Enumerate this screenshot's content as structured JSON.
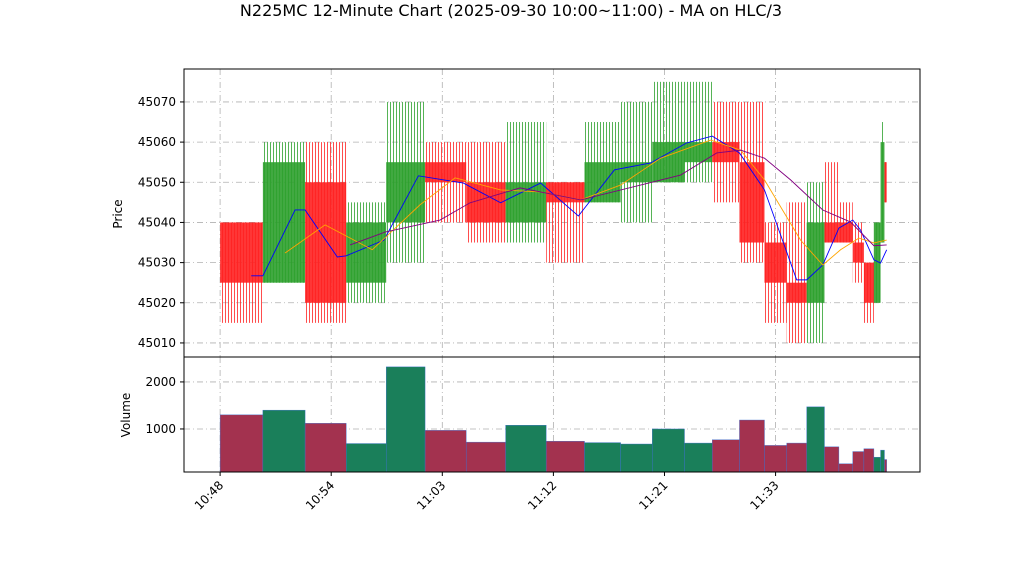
{
  "chart_data": {
    "type": "candlestick",
    "title": "N225MC 12-Minute Chart (2025-09-30 10:00~11:00) - MA on HLC/3",
    "ylabel": "Price",
    "volume_label": "Volume",
    "up_color": "#2ca02c",
    "down_color": "#ff2020",
    "volume_up_color": "#1a7f5a",
    "volume_down_color": "#a3324f",
    "grid": true,
    "xlim": [
      -6.5,
      126
    ],
    "xticks": [
      {
        "value": 0,
        "label": "10:48"
      },
      {
        "value": 20,
        "label": "10:54"
      },
      {
        "value": 40,
        "label": "11:03"
      },
      {
        "value": 60,
        "label": "11:12"
      },
      {
        "value": 80,
        "label": "11:21"
      },
      {
        "value": 100,
        "label": "11:33"
      }
    ],
    "ylim": [
      45006.5,
      45078.2
    ],
    "yticks": [
      45010,
      45020,
      45030,
      45040,
      45050,
      45060,
      45070
    ],
    "volume_ylim": [
      85,
      2530
    ],
    "volume_ticks": [
      1000,
      2000
    ],
    "candles": [
      {
        "x": [
          0,
          7.7
        ],
        "open": 45040,
        "high": 45040,
        "low": 45015,
        "close": 45025,
        "volume": 1300
      },
      {
        "x": [
          7.7,
          15.3
        ],
        "open": 45025,
        "high": 45060,
        "low": 45025,
        "close": 45055,
        "volume": 1400
      },
      {
        "x": [
          15.3,
          22.7
        ],
        "open": 45050,
        "high": 45060,
        "low": 45015,
        "close": 45020,
        "volume": 1120
      },
      {
        "x": [
          22.7,
          29.9
        ],
        "open": 45025,
        "high": 45045,
        "low": 45020,
        "close": 45040,
        "volume": 690
      },
      {
        "x": [
          29.9,
          36.9
        ],
        "open": 45040,
        "high": 45070,
        "low": 45030,
        "close": 45055,
        "volume": 2320
      },
      {
        "x": [
          36.9,
          44.3
        ],
        "open": 45055,
        "high": 45060,
        "low": 45040,
        "close": 45050,
        "volume": 970
      },
      {
        "x": [
          44.3,
          51.4
        ],
        "open": 45050,
        "high": 45060,
        "low": 45035,
        "close": 45040,
        "volume": 720
      },
      {
        "x": [
          51.4,
          58.7
        ],
        "open": 45040,
        "high": 45065,
        "low": 45035,
        "close": 45050,
        "volume": 1080
      },
      {
        "x": [
          58.7,
          65.6
        ],
        "open": 45050,
        "high": 45050,
        "low": 45030,
        "close": 45045,
        "volume": 740
      },
      {
        "x": [
          65.6,
          72.1
        ],
        "open": 45045,
        "high": 45065,
        "low": 45045,
        "close": 45055,
        "volume": 710
      },
      {
        "x": [
          72.1,
          77.8
        ],
        "open": 45050,
        "high": 45070,
        "low": 45040,
        "close": 45055,
        "volume": 680
      },
      {
        "x": [
          77.8,
          83.6
        ],
        "open": 45050,
        "high": 45075,
        "low": 45050,
        "close": 45060,
        "volume": 1000
      },
      {
        "x": [
          83.6,
          88.6
        ],
        "open": 45055,
        "high": 45075,
        "low": 45050,
        "close": 45060,
        "volume": 700
      },
      {
        "x": [
          88.6,
          93.5
        ],
        "open": 45060,
        "high": 45070,
        "low": 45045,
        "close": 45055,
        "volume": 770
      },
      {
        "x": [
          93.5,
          98
        ],
        "open": 45055,
        "high": 45070,
        "low": 45030,
        "close": 45035,
        "volume": 1190
      },
      {
        "x": [
          98,
          102
        ],
        "open": 45035,
        "high": 45040,
        "low": 45015,
        "close": 45025,
        "volume": 650
      },
      {
        "x": [
          102,
          105.6
        ],
        "open": 45025,
        "high": 45045,
        "low": 45010,
        "close": 45020,
        "volume": 700
      },
      {
        "x": [
          105.6,
          108.8
        ],
        "open": 45020,
        "high": 45050,
        "low": 45010,
        "close": 45040,
        "volume": 1470
      },
      {
        "x": [
          108.8,
          111.4
        ],
        "open": 45040,
        "high": 45055,
        "low": 45035,
        "close": 45035,
        "volume": 620
      },
      {
        "x": [
          111.4,
          113.9
        ],
        "open": 45040,
        "high": 45045,
        "low": 45035,
        "close": 45035,
        "volume": 260
      },
      {
        "x": [
          113.9,
          115.9
        ],
        "open": 45035,
        "high": 45040,
        "low": 45025,
        "close": 45030,
        "volume": 520
      },
      {
        "x": [
          115.9,
          117.7
        ],
        "open": 45030,
        "high": 45030,
        "low": 45015,
        "close": 45020,
        "volume": 580
      },
      {
        "x": [
          117.7,
          118.9
        ],
        "open": 45020,
        "high": 45040,
        "low": 45020,
        "close": 45040,
        "volume": 400
      },
      {
        "x": [
          118.9,
          119.6
        ],
        "open": 45035,
        "high": 45065,
        "low": 45035,
        "close": 45060,
        "volume": 550
      },
      {
        "x": [
          119.6,
          120
        ],
        "open": 45055,
        "high": 45055,
        "low": 45045,
        "close": 45045,
        "volume": 350
      }
    ],
    "series": [
      {
        "color": "#0000ff",
        "x": [
          5.6,
          7.7,
          13.5,
          15.3,
          21.1,
          22.7,
          29.5,
          35.7,
          43.8,
          50.5,
          57.7,
          64.5,
          71,
          77.5,
          84,
          88.6,
          93.5,
          98,
          103.8,
          105.6,
          108.5,
          111.4,
          113.9,
          115.3,
          117.7,
          118.9,
          120
        ],
        "values": [
          45026.7,
          45026.7,
          45043.1,
          45043.1,
          45031.4,
          45031.7,
          45035.6,
          45051.6,
          45049.8,
          45044.9,
          45049.8,
          45041.6,
          45053.1,
          45054.8,
          45059.8,
          45061.5,
          45057.3,
          45048.1,
          45025.7,
          45025.7,
          45029.4,
          45038.6,
          45040.6,
          45038.1,
          45030.7,
          45029.9,
          45033.2
        ]
      },
      {
        "color": "#ffa500",
        "x": [
          11.7,
          18.9,
          27.4,
          36,
          42.3,
          50.5,
          57.7,
          64.9,
          72.1,
          79.3,
          88.3,
          93.7,
          98,
          104.5,
          108.5,
          111.7,
          115,
          117.7,
          120
        ],
        "values": [
          45032.4,
          45039.4,
          45033.2,
          45044.4,
          45051.1,
          45048.1,
          45047.6,
          45045.6,
          45049.3,
          45056,
          45060.5,
          45058,
          45050.6,
          45035.6,
          45029.4,
          45033.2,
          45036.1,
          45034.9,
          45035.6
        ]
      },
      {
        "color": "#800080",
        "x": [
          23.4,
          29.7,
          39.6,
          45,
          54,
          64.9,
          75.7,
          82.9,
          89.4,
          93.7,
          98,
          102.7,
          108.5,
          113.5,
          117.7,
          120
        ],
        "values": [
          45034.4,
          45037.6,
          45040.6,
          45044.9,
          45048.6,
          45045.6,
          45049.3,
          45051.8,
          45057.3,
          45058,
          45056,
          45050.6,
          45043.1,
          45040.1,
          45034.2,
          45034.4
        ]
      }
    ]
  }
}
